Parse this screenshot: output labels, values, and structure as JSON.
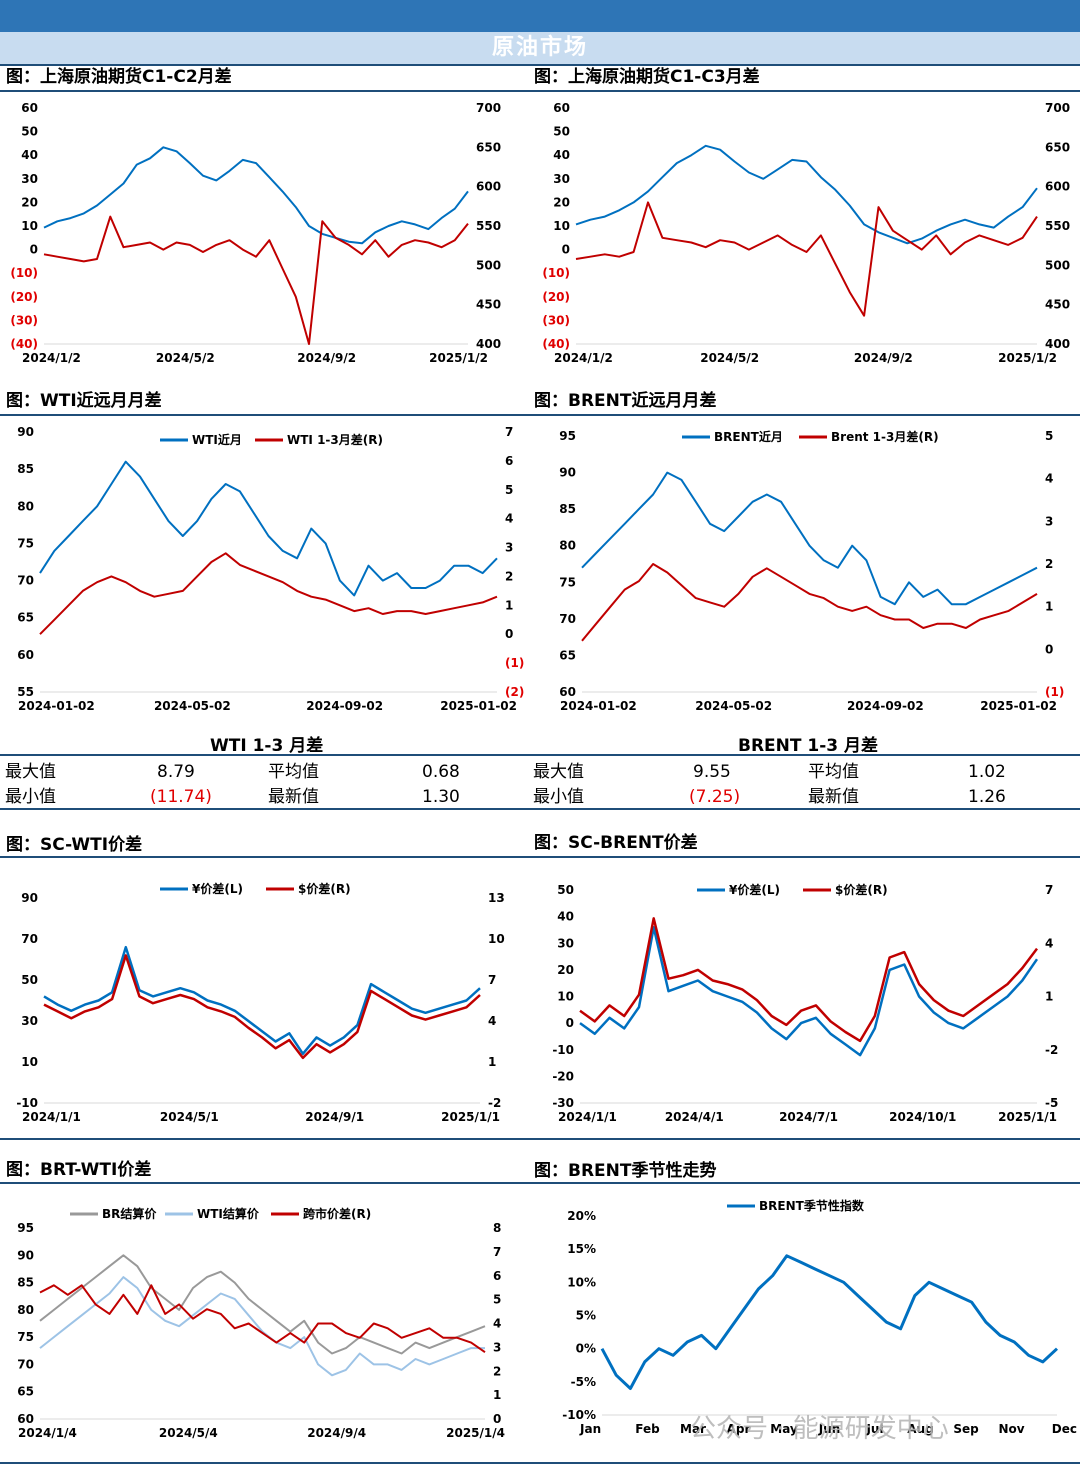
{
  "header": {
    "title": "原油市场"
  },
  "titles": {
    "c1": "图：上海原油期货C1-C2月差",
    "c2": "图：上海原油期货C1-C3月差",
    "c3": "图：WTI近远月月差",
    "c4": "图：BRENT近远月月差",
    "c5": "图：SC-WTI价差",
    "c6": "图：SC-BRENT价差",
    "c7": "图：BRT-WTI价差",
    "c8": "图：BRENT季节性走势"
  },
  "stats": {
    "wti": {
      "title": "WTI 1-3 月差",
      "max_label": "最大值",
      "max": "8.79",
      "avg_label": "平均值",
      "avg": "0.68",
      "min_label": "最小值",
      "min": "(11.74)",
      "latest_label": "最新值",
      "latest": "1.30"
    },
    "brent": {
      "title": "BRENT 1-3 月差",
      "max_label": "最大值",
      "max": "9.55",
      "avg_label": "平均值",
      "avg": "1.02",
      "min_label": "最小值",
      "min": "(7.25)",
      "latest_label": "最新值",
      "latest": "1.26"
    }
  },
  "watermark": "公众号 · 能源研发中心",
  "chart_data": [
    {
      "id": "c1",
      "type": "line",
      "colors": [
        "#0070c0",
        "#c00000"
      ],
      "ylabels": [
        "60",
        "50",
        "40",
        "30",
        "20",
        "10",
        "0",
        "(10)",
        "(20)",
        "(30)",
        "(40)"
      ],
      "ylabel_red_from": 7,
      "y2labels": [
        "700",
        "650",
        "600",
        "550",
        "500",
        "450",
        "400"
      ],
      "xlabels": [
        "2024/1/2",
        "2024/5/2",
        "2024/9/2",
        "2025/1/2"
      ],
      "ylim": [
        -40,
        60
      ],
      "y2lim": [
        400,
        700
      ],
      "series": [
        {
          "axis": "right",
          "values": [
            548,
            556,
            560,
            566,
            576,
            590,
            604,
            628,
            636,
            650,
            645,
            630,
            614,
            608,
            620,
            634,
            630,
            612,
            594,
            574,
            550,
            540,
            535,
            530,
            528,
            542,
            550,
            556,
            552,
            546,
            560,
            572,
            594
          ]
        },
        {
          "axis": "left",
          "values": [
            -2,
            -3,
            -4,
            -5,
            -4,
            14,
            1,
            2,
            3,
            0,
            3,
            2,
            -1,
            2,
            4,
            0,
            -3,
            4,
            -8,
            -20,
            -40,
            12,
            5,
            2,
            -2,
            4,
            -3,
            2,
            4,
            3,
            1,
            4,
            11
          ]
        }
      ]
    },
    {
      "id": "c2",
      "type": "line",
      "colors": [
        "#0070c0",
        "#c00000"
      ],
      "ylabels": [
        "60",
        "50",
        "40",
        "30",
        "20",
        "10",
        "0",
        "(10)",
        "(20)",
        "(30)",
        "(40)"
      ],
      "ylabel_red_from": 7,
      "y2labels": [
        "700",
        "650",
        "600",
        "550",
        "500",
        "450",
        "400"
      ],
      "xlabels": [
        "2024/1/2",
        "2024/5/2",
        "2024/9/2",
        "2025/1/2"
      ],
      "ylim": [
        -40,
        60
      ],
      "y2lim": [
        400,
        700
      ],
      "series": [
        {
          "axis": "right",
          "values": [
            552,
            558,
            562,
            570,
            580,
            594,
            612,
            630,
            640,
            652,
            647,
            632,
            618,
            610,
            622,
            634,
            632,
            612,
            596,
            576,
            552,
            542,
            535,
            528,
            534,
            544,
            552,
            558,
            552,
            548,
            562,
            574,
            598
          ]
        },
        {
          "axis": "left",
          "values": [
            -4,
            -3,
            -2,
            -3,
            -1,
            20,
            5,
            4,
            3,
            1,
            4,
            3,
            0,
            3,
            6,
            2,
            -1,
            6,
            -6,
            -18,
            -28,
            18,
            8,
            4,
            0,
            6,
            -2,
            3,
            6,
            4,
            2,
            5,
            14
          ]
        }
      ]
    },
    {
      "id": "c3",
      "type": "line",
      "colors": [
        "#0070c0",
        "#c00000"
      ],
      "ylabels": [
        "90",
        "85",
        "80",
        "75",
        "70",
        "65",
        "60",
        "55"
      ],
      "y2labels": [
        "7",
        "6",
        "5",
        "4",
        "3",
        "2",
        "1",
        "0",
        "(1)",
        "(2)"
      ],
      "y2label_red_from": 8,
      "xlabels": [
        "2024-01-02",
        "2024-05-02",
        "2024-09-02",
        "2025-01-02"
      ],
      "ylim": [
        55,
        90
      ],
      "y2lim": [
        -2,
        7
      ],
      "legend": [
        {
          "name": "WTI近月",
          "color": "#0070c0"
        },
        {
          "name": "WTI 1-3月差(R)",
          "color": "#c00000"
        }
      ],
      "series": [
        {
          "axis": "left",
          "values": [
            71,
            74,
            76,
            78,
            80,
            83,
            86,
            84,
            81,
            78,
            76,
            78,
            81,
            83,
            82,
            79,
            76,
            74,
            73,
            77,
            75,
            70,
            68,
            72,
            70,
            71,
            69,
            69,
            70,
            72,
            72,
            71,
            73
          ]
        },
        {
          "axis": "right",
          "values": [
            0,
            0.5,
            1,
            1.5,
            1.8,
            2,
            1.8,
            1.5,
            1.3,
            1.4,
            1.5,
            2,
            2.5,
            2.8,
            2.4,
            2.2,
            2,
            1.8,
            1.5,
            1.3,
            1.2,
            1,
            0.8,
            0.9,
            0.7,
            0.8,
            0.8,
            0.7,
            0.8,
            0.9,
            1,
            1.1,
            1.3
          ]
        }
      ]
    },
    {
      "id": "c4",
      "type": "line",
      "colors": [
        "#0070c0",
        "#c00000"
      ],
      "ylabels": [
        "95",
        "90",
        "85",
        "80",
        "75",
        "70",
        "65",
        "60"
      ],
      "y2labels": [
        "5",
        "4",
        "3",
        "2",
        "1",
        "0",
        "(1)"
      ],
      "y2label_red_from": 6,
      "xlabels": [
        "2024-01-02",
        "2024-05-02",
        "2024-09-02",
        "2025-01-02"
      ],
      "ylim": [
        60,
        95
      ],
      "y2lim": [
        -1,
        5
      ],
      "legend": [
        {
          "name": "BRENT近月",
          "color": "#0070c0"
        },
        {
          "name": "Brent 1-3月差(R)",
          "color": "#c00000"
        }
      ],
      "series": [
        {
          "axis": "left",
          "values": [
            77,
            79,
            81,
            83,
            85,
            87,
            90,
            89,
            86,
            83,
            82,
            84,
            86,
            87,
            86,
            83,
            80,
            78,
            77,
            80,
            78,
            73,
            72,
            75,
            73,
            74,
            72,
            72,
            73,
            74,
            75,
            76,
            77
          ]
        },
        {
          "axis": "right",
          "values": [
            0.2,
            0.6,
            1,
            1.4,
            1.6,
            2,
            1.8,
            1.5,
            1.2,
            1.1,
            1,
            1.3,
            1.7,
            1.9,
            1.7,
            1.5,
            1.3,
            1.2,
            1,
            0.9,
            1,
            0.8,
            0.7,
            0.7,
            0.5,
            0.6,
            0.6,
            0.5,
            0.7,
            0.8,
            0.9,
            1.1,
            1.3
          ]
        }
      ]
    },
    {
      "id": "c5",
      "type": "line",
      "colors": [
        "#0070c0",
        "#c00000"
      ],
      "ylabels": [
        "90",
        "70",
        "50",
        "30",
        "10",
        "-10"
      ],
      "y2labels": [
        "13",
        "10",
        "7",
        "4",
        "1",
        "-2"
      ],
      "xlabels": [
        "2024/1/1",
        "2024/5/1",
        "2024/9/1",
        "2025/1/1"
      ],
      "ylim": [
        -10,
        90
      ],
      "y2lim": [
        -2,
        13
      ],
      "legend": [
        {
          "name": "¥价差(L)",
          "color": "#0070c0"
        },
        {
          "name": "$价差(R)",
          "color": "#c00000"
        }
      ],
      "series": [
        {
          "axis": "left",
          "values": [
            42,
            38,
            35,
            38,
            40,
            44,
            66,
            45,
            42,
            44,
            46,
            44,
            40,
            38,
            35,
            30,
            25,
            20,
            24,
            14,
            22,
            18,
            22,
            28,
            48,
            44,
            40,
            36,
            34,
            36,
            38,
            40,
            46
          ]
        },
        {
          "axis": "right",
          "values": [
            5.2,
            4.7,
            4.2,
            4.7,
            5,
            5.6,
            8.8,
            5.8,
            5.3,
            5.6,
            5.9,
            5.6,
            5,
            4.7,
            4.3,
            3.5,
            2.8,
            2,
            2.6,
            1.3,
            2.3,
            1.7,
            2.3,
            3.2,
            6.2,
            5.6,
            5,
            4.4,
            4.1,
            4.4,
            4.7,
            5,
            5.9
          ]
        }
      ]
    },
    {
      "id": "c6",
      "type": "line",
      "colors": [
        "#0070c0",
        "#c00000"
      ],
      "ylabels": [
        "50",
        "40",
        "30",
        "20",
        "10",
        "0",
        "-10",
        "-20",
        "-30"
      ],
      "y2labels": [
        "7",
        "4",
        "1",
        "-2",
        "-5"
      ],
      "xlabels": [
        "2024/1/1",
        "2024/4/1",
        "2024/7/1",
        "2024/10/1",
        "2025/1/1"
      ],
      "ylim": [
        -30,
        50
      ],
      "y2lim": [
        -5,
        7
      ],
      "legend": [
        {
          "name": "¥价差(L)",
          "color": "#0070c0"
        },
        {
          "name": "$价差(R)",
          "color": "#c00000"
        }
      ],
      "series": [
        {
          "axis": "left",
          "values": [
            0,
            -4,
            2,
            -2,
            6,
            36,
            12,
            14,
            16,
            12,
            10,
            8,
            4,
            -2,
            -6,
            0,
            2,
            -4,
            -8,
            -12,
            -2,
            20,
            22,
            10,
            4,
            0,
            -2,
            2,
            6,
            10,
            16,
            24
          ]
        },
        {
          "axis": "right",
          "values": [
            0.2,
            -0.4,
            0.5,
            -0.1,
            1.1,
            5.4,
            2,
            2.2,
            2.5,
            1.9,
            1.7,
            1.4,
            0.8,
            -0.1,
            -0.6,
            0.2,
            0.5,
            -0.4,
            -1,
            -1.5,
            -0.1,
            3.2,
            3.5,
            1.7,
            0.8,
            0.2,
            -0.1,
            0.5,
            1.1,
            1.7,
            2.6,
            3.7
          ]
        }
      ]
    },
    {
      "id": "c7",
      "type": "line",
      "colors": [
        "#999999",
        "#9dc3e6",
        "#c00000"
      ],
      "ylabels": [
        "95",
        "90",
        "85",
        "80",
        "75",
        "70",
        "65",
        "60"
      ],
      "y2labels": [
        "8",
        "7",
        "6",
        "5",
        "4",
        "3",
        "2",
        "1",
        "0"
      ],
      "xlabels": [
        "2024/1/4",
        "2024/5/4",
        "2024/9/4",
        "2025/1/4"
      ],
      "ylim": [
        60,
        95
      ],
      "y2lim": [
        0,
        8
      ],
      "legend": [
        {
          "name": "BR结算价",
          "color": "#999999"
        },
        {
          "name": "WTI结算价",
          "color": "#9dc3e6"
        },
        {
          "name": "跨市价差(R)",
          "color": "#c00000"
        }
      ],
      "series": [
        {
          "axis": "left",
          "values": [
            78,
            80,
            82,
            84,
            86,
            88,
            90,
            88,
            84,
            82,
            80,
            84,
            86,
            87,
            85,
            82,
            80,
            78,
            76,
            78,
            74,
            72,
            73,
            75,
            74,
            73,
            72,
            74,
            73,
            74,
            75,
            76,
            77
          ]
        },
        {
          "axis": "left",
          "values": [
            73,
            75,
            77,
            79,
            81,
            83,
            86,
            84,
            80,
            78,
            77,
            79,
            81,
            83,
            82,
            79,
            76,
            74,
            73,
            75,
            70,
            68,
            69,
            72,
            70,
            70,
            69,
            71,
            70,
            71,
            72,
            73,
            73
          ]
        },
        {
          "axis": "right",
          "values": [
            5.3,
            5.6,
            5.2,
            5.6,
            4.8,
            4.4,
            5.2,
            4.4,
            5.6,
            4.4,
            4.8,
            4.2,
            4.6,
            4.4,
            3.8,
            4,
            3.6,
            3.2,
            3.6,
            3.2,
            4,
            4,
            3.6,
            3.4,
            4,
            3.8,
            3.4,
            3.6,
            3.8,
            3.4,
            3.4,
            3.2,
            2.8
          ]
        }
      ]
    },
    {
      "id": "c8",
      "type": "line",
      "colors": [
        "#0070c0"
      ],
      "ylabels": [
        "20%",
        "15%",
        "10%",
        "5%",
        "0%",
        "-5%",
        "-10%"
      ],
      "xlabels": [
        "Jan",
        "Feb",
        "Mar",
        "Apr",
        "May",
        "Jun",
        "Jul",
        "Aug",
        "Sep",
        "Nov",
        "Dec"
      ],
      "ylim": [
        -10,
        20
      ],
      "legend": [
        {
          "name": "BRENT季节性指数",
          "color": "#0070c0"
        }
      ],
      "series": [
        {
          "axis": "left",
          "values": [
            0,
            -4,
            -6,
            -2,
            0,
            -1,
            1,
            2,
            0,
            3,
            6,
            9,
            11,
            14,
            13,
            12,
            11,
            10,
            8,
            6,
            4,
            3,
            8,
            10,
            9,
            8,
            7,
            4,
            2,
            1,
            -1,
            -2,
            0
          ]
        }
      ]
    }
  ]
}
